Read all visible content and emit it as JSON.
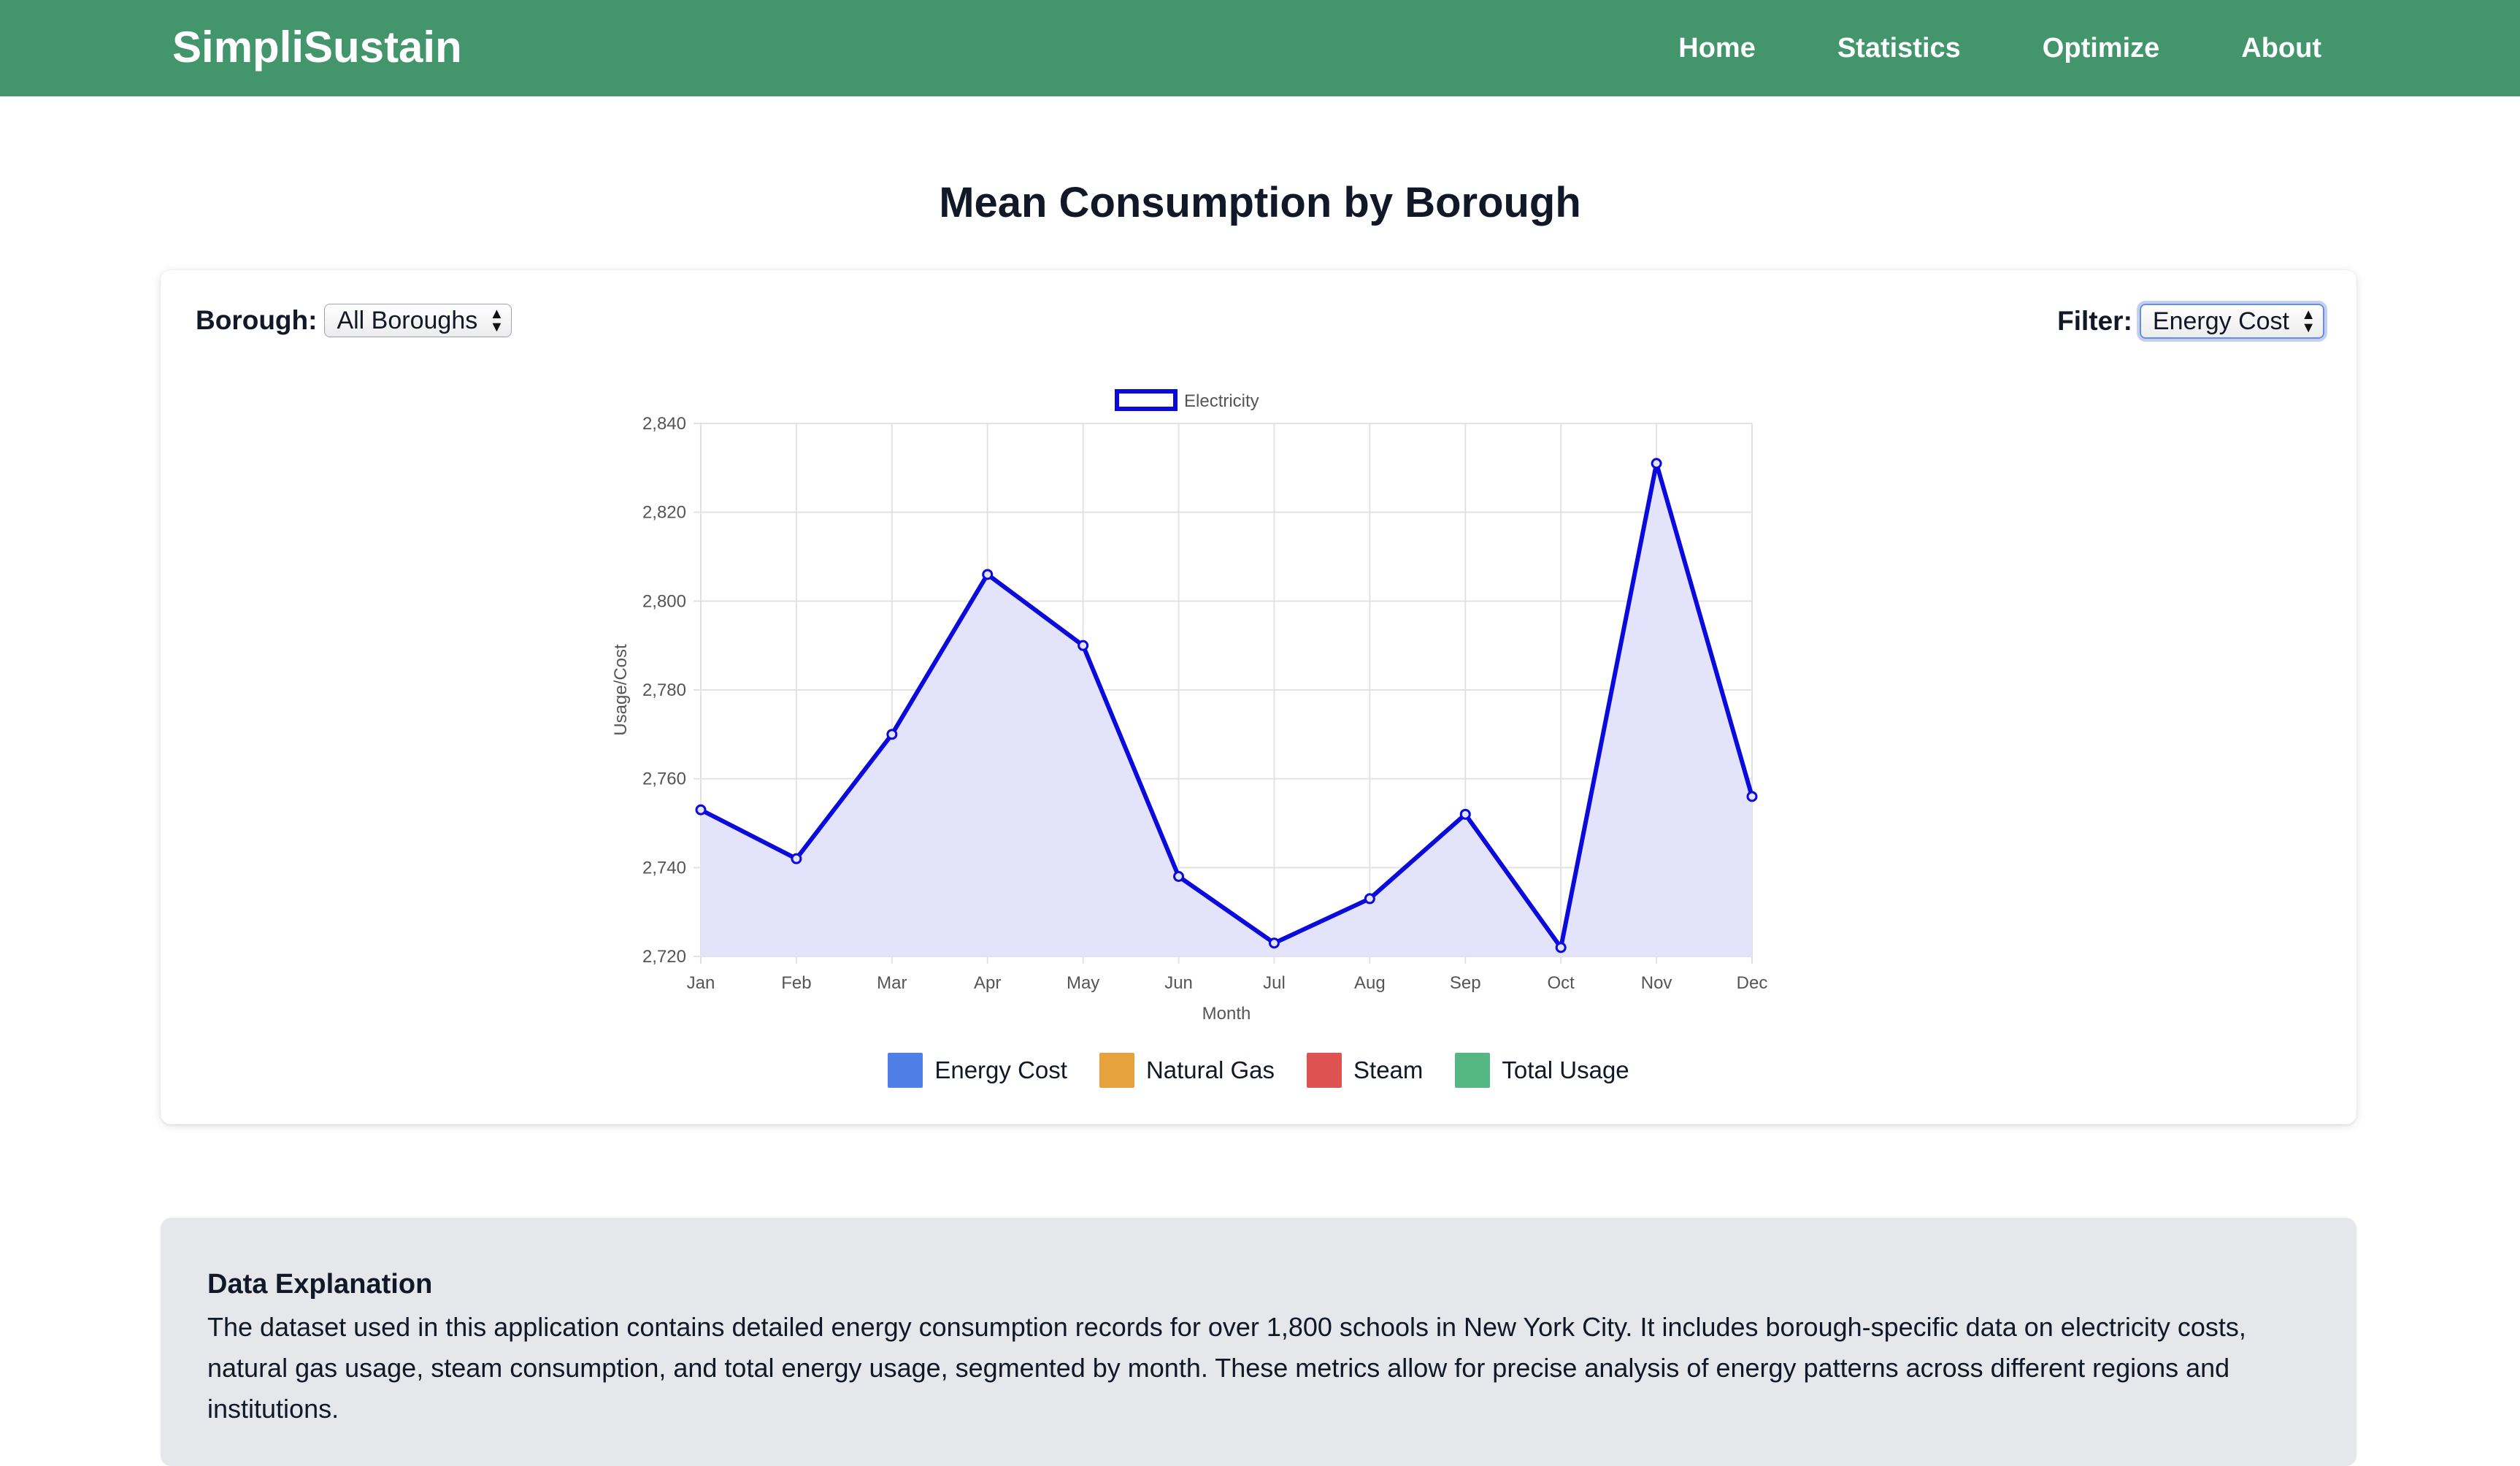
{
  "nav": {
    "brand": "SimpliSustain",
    "links": [
      "Home",
      "Statistics",
      "Optimize",
      "About"
    ]
  },
  "page": {
    "title": "Mean Consumption by Borough"
  },
  "controls": {
    "borough_label": "Borough:",
    "borough_value": "All Boroughs",
    "filter_label": "Filter:",
    "filter_value": "Energy Cost"
  },
  "chart_data": {
    "type": "line",
    "categories": [
      "Jan",
      "Feb",
      "Mar",
      "Apr",
      "May",
      "Jun",
      "Jul",
      "Aug",
      "Sep",
      "Oct",
      "Nov",
      "Dec"
    ],
    "series": [
      {
        "name": "Electricity",
        "values": [
          2753,
          2742,
          2770,
          2806,
          2790,
          2738,
          2723,
          2733,
          2752,
          2722,
          2831,
          2756
        ]
      }
    ],
    "xlabel": "Month",
    "ylabel": "Usage/Cost",
    "ylim": [
      2720,
      2840
    ],
    "yticks": [
      "2,720",
      "2,740",
      "2,760",
      "2,780",
      "2,800",
      "2,820",
      "2,840"
    ],
    "grid": true,
    "legend": "top",
    "line_color": "#0a0adc",
    "fill_color": "#e3e3fb",
    "area_fill": true
  },
  "category_legend": [
    {
      "label": "Energy Cost",
      "color": "#4f7fe6"
    },
    {
      "label": "Natural Gas",
      "color": "#e8a23d"
    },
    {
      "label": "Steam",
      "color": "#df5252"
    },
    {
      "label": "Total Usage",
      "color": "#55b784"
    }
  ],
  "explanation": {
    "title": "Data Explanation",
    "text": "The dataset used in this application contains detailed energy consumption records for over 1,800 schools in New York City. It includes borough-specific data on electricity costs, natural gas usage, steam consumption, and total energy usage, segmented by month. These metrics allow for precise analysis of energy patterns across different regions and institutions."
  }
}
